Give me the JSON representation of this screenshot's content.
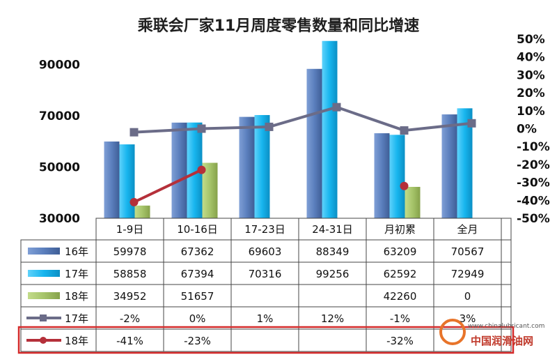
{
  "chart_data": {
    "type": "bar",
    "title": "乘联会厂家11月周度零售数量和同比增速",
    "categories": [
      "1-9日",
      "10-16日",
      "17-23日",
      "24-31日",
      "月初累",
      "全月"
    ],
    "series": [
      {
        "name": "16年",
        "kind": "bar",
        "color": "#5b7fbd",
        "values": [
          59978,
          67362,
          69603,
          88349,
          63209,
          70567
        ],
        "labels": [
          "59978",
          "67362",
          "69603",
          "88349",
          "63209",
          "70567"
        ]
      },
      {
        "name": "17年",
        "kind": "bar",
        "color": "#17b5ee",
        "values": [
          58858,
          67394,
          70316,
          99256,
          62592,
          72949
        ],
        "labels": [
          "58858",
          "67394",
          "70316",
          "99256",
          "62592",
          "72949"
        ]
      },
      {
        "name": "18年",
        "kind": "bar",
        "color": "#a6c46a",
        "values": [
          34952,
          51657,
          null,
          null,
          42260,
          0
        ],
        "labels": [
          "34952",
          "51657",
          "",
          "",
          "42260",
          "0"
        ]
      },
      {
        "name": "17年",
        "kind": "line",
        "axis": "right",
        "color": "#6b6c88",
        "values": [
          -2,
          0,
          1,
          12,
          -1,
          3
        ],
        "labels": [
          "-2%",
          "0%",
          "1%",
          "12%",
          "-1%",
          "3%"
        ]
      },
      {
        "name": "18年",
        "kind": "line",
        "axis": "right",
        "color": "#b5303a",
        "values": [
          -41,
          -23,
          null,
          null,
          -32,
          null
        ],
        "labels": [
          "-41%",
          "-23%",
          "",
          "",
          "-32%",
          ""
        ]
      }
    ],
    "y_left": {
      "ylim": [
        30000,
        100000
      ],
      "ticks": [
        30000,
        50000,
        70000,
        90000
      ],
      "tick_labels": [
        "30000",
        "50000",
        "70000",
        "90000"
      ]
    },
    "y_right": {
      "ylim": [
        -50,
        50
      ],
      "ticks": [
        -50,
        -40,
        -30,
        -20,
        -10,
        0,
        10,
        20,
        30,
        40,
        50
      ],
      "tick_labels": [
        "-50%",
        "-40%",
        "-30%",
        "-20%",
        "-10%",
        "0%",
        "10%",
        "20%",
        "30%",
        "40%",
        "50%"
      ]
    },
    "data_table": true,
    "highlight_row": "18年 同比"
  },
  "watermark": {
    "url": "www.chinalubricant.com",
    "name": "中国润滑油网",
    "accent": "#e8742a"
  }
}
